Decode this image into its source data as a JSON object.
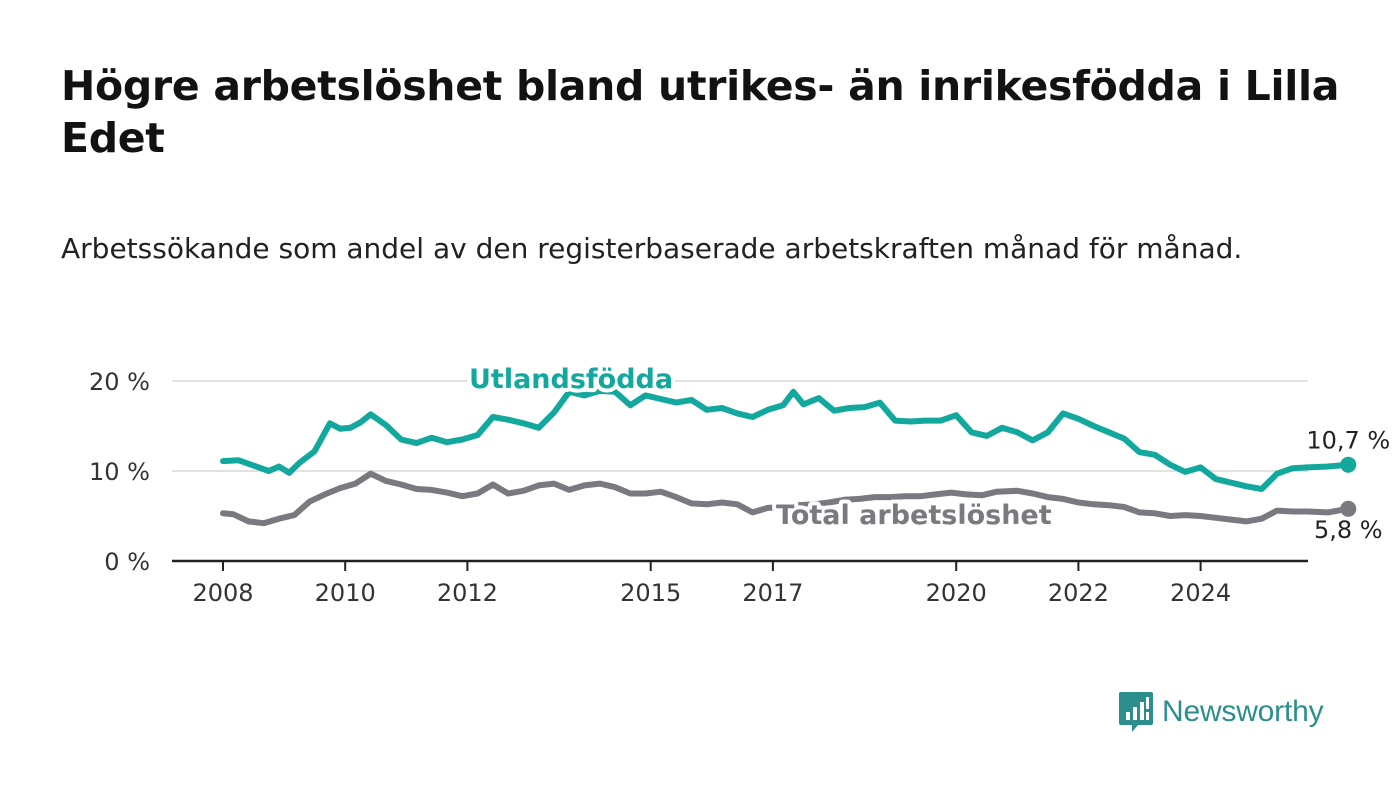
{
  "title": "Högre arbetslöshet bland utrikes- än inrikesfödda i Lilla Edet",
  "subtitle": "Arbetssökande som andel av den registerbaserade arbetskraften månad för månad.",
  "brand": {
    "name": "Newsworthy",
    "icon": "newsworthy-bar-chart-icon",
    "color": "#2c8f8d"
  },
  "chart_data": {
    "type": "line",
    "ylim": [
      0,
      20
    ],
    "yticks": [
      0,
      10,
      20
    ],
    "ytick_labels": [
      "0 %",
      "10 %",
      "20 %"
    ],
    "xtick_years": [
      2008,
      2010,
      2012,
      2015,
      2017,
      2020,
      2022,
      2024
    ],
    "xtick_labels": [
      "2008",
      "2010",
      "2012",
      "2015",
      "2017",
      "2020",
      "2022",
      "2024"
    ],
    "grid": true,
    "series": [
      {
        "name": "Utlandsfödda",
        "color": "#13a89e",
        "end_label": "10,7 %",
        "points": [
          [
            "2008-01",
            11.1
          ],
          [
            "2008-04",
            11.2
          ],
          [
            "2008-07",
            10.6
          ],
          [
            "2008-10",
            10.0
          ],
          [
            "2008-12",
            10.5
          ],
          [
            "2009-02",
            9.8
          ],
          [
            "2009-04",
            10.9
          ],
          [
            "2009-07",
            12.2
          ],
          [
            "2009-10",
            15.3
          ],
          [
            "2009-12",
            14.7
          ],
          [
            "2010-02",
            14.8
          ],
          [
            "2010-04",
            15.4
          ],
          [
            "2010-06",
            16.3
          ],
          [
            "2010-09",
            15.1
          ],
          [
            "2010-12",
            13.5
          ],
          [
            "2011-03",
            13.1
          ],
          [
            "2011-06",
            13.7
          ],
          [
            "2011-09",
            13.2
          ],
          [
            "2011-12",
            13.5
          ],
          [
            "2012-03",
            14.0
          ],
          [
            "2012-06",
            16.0
          ],
          [
            "2012-09",
            15.7
          ],
          [
            "2012-12",
            15.3
          ],
          [
            "2013-03",
            14.8
          ],
          [
            "2013-06",
            16.5
          ],
          [
            "2013-09",
            18.8
          ],
          [
            "2013-12",
            18.4
          ],
          [
            "2014-03",
            18.9
          ],
          [
            "2014-06",
            18.8
          ],
          [
            "2014-09",
            17.3
          ],
          [
            "2014-12",
            18.4
          ],
          [
            "2015-03",
            18.0
          ],
          [
            "2015-06",
            17.6
          ],
          [
            "2015-09",
            17.9
          ],
          [
            "2015-12",
            16.8
          ],
          [
            "2016-03",
            17.0
          ],
          [
            "2016-06",
            16.4
          ],
          [
            "2016-09",
            16.0
          ],
          [
            "2016-12",
            16.8
          ],
          [
            "2017-03",
            17.3
          ],
          [
            "2017-05",
            18.8
          ],
          [
            "2017-07",
            17.4
          ],
          [
            "2017-10",
            18.1
          ],
          [
            "2018-01",
            16.7
          ],
          [
            "2018-04",
            17.0
          ],
          [
            "2018-07",
            17.1
          ],
          [
            "2018-10",
            17.6
          ],
          [
            "2019-01",
            15.6
          ],
          [
            "2019-04",
            15.5
          ],
          [
            "2019-07",
            15.6
          ],
          [
            "2019-10",
            15.6
          ],
          [
            "2020-01",
            16.2
          ],
          [
            "2020-04",
            14.3
          ],
          [
            "2020-07",
            13.9
          ],
          [
            "2020-10",
            14.8
          ],
          [
            "2021-01",
            14.3
          ],
          [
            "2021-04",
            13.4
          ],
          [
            "2021-07",
            14.3
          ],
          [
            "2021-10",
            16.4
          ],
          [
            "2022-01",
            15.8
          ],
          [
            "2022-04",
            15.0
          ],
          [
            "2022-07",
            14.3
          ],
          [
            "2022-10",
            13.6
          ],
          [
            "2023-01",
            12.1
          ],
          [
            "2023-04",
            11.8
          ],
          [
            "2023-07",
            10.7
          ],
          [
            "2023-10",
            9.9
          ],
          [
            "2024-01",
            10.4
          ],
          [
            "2024-04",
            9.1
          ],
          [
            "2024-07",
            8.7
          ],
          [
            "2024-10",
            8.3
          ],
          [
            "2025-01",
            8.0
          ],
          [
            "2025-04",
            9.7
          ],
          [
            "2025-07",
            10.3
          ],
          [
            "2025-10",
            10.4
          ],
          [
            "2026-02",
            10.5
          ],
          [
            "2026-06",
            10.7
          ]
        ]
      },
      {
        "name": "Total arbetslöshet",
        "color": "#7b7880",
        "end_label": "5,8 %",
        "points": [
          [
            "2008-01",
            5.3
          ],
          [
            "2008-03",
            5.2
          ],
          [
            "2008-06",
            4.4
          ],
          [
            "2008-09",
            4.2
          ],
          [
            "2008-12",
            4.7
          ],
          [
            "2009-03",
            5.1
          ],
          [
            "2009-06",
            6.6
          ],
          [
            "2009-09",
            7.4
          ],
          [
            "2009-12",
            8.1
          ],
          [
            "2010-03",
            8.6
          ],
          [
            "2010-06",
            9.7
          ],
          [
            "2010-09",
            8.9
          ],
          [
            "2010-12",
            8.5
          ],
          [
            "2011-03",
            8.0
          ],
          [
            "2011-06",
            7.9
          ],
          [
            "2011-09",
            7.6
          ],
          [
            "2011-12",
            7.2
          ],
          [
            "2012-03",
            7.5
          ],
          [
            "2012-06",
            8.5
          ],
          [
            "2012-09",
            7.5
          ],
          [
            "2012-12",
            7.8
          ],
          [
            "2013-03",
            8.4
          ],
          [
            "2013-06",
            8.6
          ],
          [
            "2013-09",
            7.9
          ],
          [
            "2013-12",
            8.4
          ],
          [
            "2014-03",
            8.6
          ],
          [
            "2014-06",
            8.2
          ],
          [
            "2014-09",
            7.5
          ],
          [
            "2014-12",
            7.5
          ],
          [
            "2015-03",
            7.7
          ],
          [
            "2015-06",
            7.1
          ],
          [
            "2015-09",
            6.4
          ],
          [
            "2015-12",
            6.3
          ],
          [
            "2016-03",
            6.5
          ],
          [
            "2016-06",
            6.3
          ],
          [
            "2016-09",
            5.4
          ],
          [
            "2016-12",
            5.9
          ],
          [
            "2017-03",
            6.0
          ],
          [
            "2017-06",
            6.2
          ],
          [
            "2017-09",
            6.3
          ],
          [
            "2017-12",
            6.5
          ],
          [
            "2018-03",
            6.8
          ],
          [
            "2018-06",
            6.9
          ],
          [
            "2018-09",
            7.1
          ],
          [
            "2018-12",
            7.1
          ],
          [
            "2019-03",
            7.2
          ],
          [
            "2019-06",
            7.2
          ],
          [
            "2019-09",
            7.4
          ],
          [
            "2019-12",
            7.6
          ],
          [
            "2020-03",
            7.4
          ],
          [
            "2020-06",
            7.3
          ],
          [
            "2020-09",
            7.7
          ],
          [
            "2021-01",
            7.8
          ],
          [
            "2021-04",
            7.5
          ],
          [
            "2021-07",
            7.1
          ],
          [
            "2021-10",
            6.9
          ],
          [
            "2022-01",
            6.5
          ],
          [
            "2022-04",
            6.3
          ],
          [
            "2022-07",
            6.2
          ],
          [
            "2022-10",
            6.0
          ],
          [
            "2023-01",
            5.4
          ],
          [
            "2023-04",
            5.3
          ],
          [
            "2023-07",
            5.0
          ],
          [
            "2023-10",
            5.1
          ],
          [
            "2024-01",
            5.0
          ],
          [
            "2024-04",
            4.8
          ],
          [
            "2024-07",
            4.6
          ],
          [
            "2024-10",
            4.4
          ],
          [
            "2025-01",
            4.7
          ],
          [
            "2025-04",
            5.6
          ],
          [
            "2025-07",
            5.5
          ],
          [
            "2025-10",
            5.5
          ],
          [
            "2026-02",
            5.4
          ],
          [
            "2026-06",
            5.8
          ]
        ]
      }
    ]
  }
}
